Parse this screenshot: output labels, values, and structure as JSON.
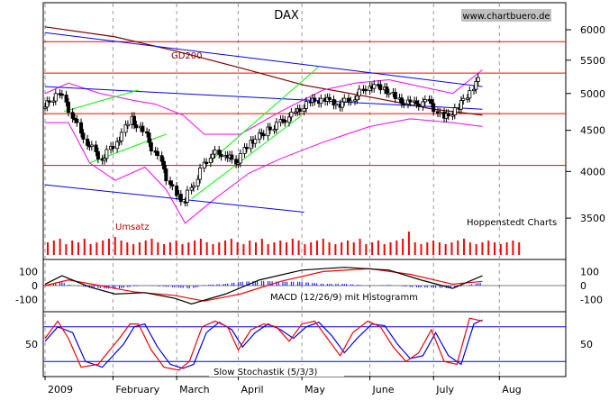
{
  "chart_data": {
    "type": "candlestick",
    "title": "DAX",
    "source_badge": "www.chartbuero.de",
    "credit": "Hoppenstedt Charts",
    "scale": "log",
    "price_ticks": [
      6000,
      5500,
      5000,
      4500,
      4000,
      3500
    ],
    "x_tick_labels": [
      "2009",
      "February",
      "March",
      "April",
      "May",
      "June",
      "July",
      "Aug"
    ],
    "x_dates": [
      "2008-12-30",
      "2009-01-31",
      "2009-03-02",
      "2009-03-31",
      "2009-04-30",
      "2009-06-01",
      "2009-07-01",
      "2009-08-01"
    ],
    "date_range": [
      "2008-12-30",
      "2009-08-31"
    ],
    "last_date": "2009-07-24",
    "prices": [
      {
        "date": "2008-12-30",
        "close": 4810
      },
      {
        "date": "2009-01-06",
        "close": 5020
      },
      {
        "date": "2009-01-12",
        "close": 4700
      },
      {
        "date": "2009-01-19",
        "close": 4350
      },
      {
        "date": "2009-01-26",
        "close": 4150
      },
      {
        "date": "2009-02-02",
        "close": 4350
      },
      {
        "date": "2009-02-09",
        "close": 4650
      },
      {
        "date": "2009-02-16",
        "close": 4420
      },
      {
        "date": "2009-02-23",
        "close": 4080
      },
      {
        "date": "2009-03-02",
        "close": 3720
      },
      {
        "date": "2009-03-06",
        "close": 3680
      },
      {
        "date": "2009-03-12",
        "close": 3950
      },
      {
        "date": "2009-03-18",
        "close": 4200
      },
      {
        "date": "2009-03-25",
        "close": 4220
      },
      {
        "date": "2009-03-30",
        "close": 4090
      },
      {
        "date": "2009-04-06",
        "close": 4350
      },
      {
        "date": "2009-04-14",
        "close": 4500
      },
      {
        "date": "2009-04-20",
        "close": 4600
      },
      {
        "date": "2009-04-27",
        "close": 4720
      },
      {
        "date": "2009-05-04",
        "close": 4880
      },
      {
        "date": "2009-05-11",
        "close": 4920
      },
      {
        "date": "2009-05-18",
        "close": 4850
      },
      {
        "date": "2009-05-25",
        "close": 4950
      },
      {
        "date": "2009-06-01",
        "close": 5120
      },
      {
        "date": "2009-06-08",
        "close": 5080
      },
      {
        "date": "2009-06-15",
        "close": 4900
      },
      {
        "date": "2009-06-22",
        "close": 4850
      },
      {
        "date": "2009-06-29",
        "close": 4880
      },
      {
        "date": "2009-07-06",
        "close": 4650
      },
      {
        "date": "2009-07-13",
        "close": 4800
      },
      {
        "date": "2009-07-20",
        "close": 5100
      },
      {
        "date": "2009-07-24",
        "close": 5250
      }
    ],
    "horizontal_levels": [
      5800,
      5300,
      4720,
      4070
    ],
    "trendlines": [
      {
        "color": "blue",
        "points": [
          [
            "2008-12-30",
            5950
          ],
          [
            "2009-07-24",
            5100
          ]
        ]
      },
      {
        "color": "blue",
        "points": [
          [
            "2008-12-30",
            5100
          ],
          [
            "2009-07-24",
            4780
          ]
        ]
      },
      {
        "color": "blue",
        "points": [
          [
            "2008-12-30",
            3850
          ],
          [
            "2009-05-01",
            3560
          ]
        ]
      },
      {
        "color": "green",
        "points": [
          [
            "2009-01-08",
            4750
          ],
          [
            "2009-02-12",
            5050
          ]
        ]
      },
      {
        "color": "green",
        "points": [
          [
            "2009-01-20",
            4100
          ],
          [
            "2009-02-25",
            4450
          ]
        ]
      },
      {
        "color": "green",
        "points": [
          [
            "2009-03-17",
            4100
          ],
          [
            "2009-05-08",
            5400
          ]
        ]
      },
      {
        "color": "green",
        "points": [
          [
            "2009-03-09",
            3700
          ],
          [
            "2009-04-30",
            4700
          ]
        ]
      }
    ],
    "gd200": {
      "label": "GD200",
      "points": [
        [
          "2008-12-30",
          6050
        ],
        [
          "2009-02-01",
          5880
        ],
        [
          "2009-03-01",
          5650
        ],
        [
          "2009-04-01",
          5380
        ],
        [
          "2009-05-01",
          5120
        ],
        [
          "2009-06-01",
          4950
        ],
        [
          "2009-07-01",
          4780
        ],
        [
          "2009-07-24",
          4700
        ]
      ]
    },
    "bollinger_upper": [
      [
        "2008-12-30",
        5000
      ],
      [
        "2009-01-10",
        5150
      ],
      [
        "2009-01-25",
        5000
      ],
      [
        "2009-02-10",
        4900
      ],
      [
        "2009-02-20",
        4850
      ],
      [
        "2009-03-05",
        4700
      ],
      [
        "2009-03-15",
        4450
      ],
      [
        "2009-04-01",
        4450
      ],
      [
        "2009-04-20",
        4750
      ],
      [
        "2009-05-10",
        5050
      ],
      [
        "2009-05-25",
        5150
      ],
      [
        "2009-06-10",
        5200
      ],
      [
        "2009-06-25",
        5100
      ],
      [
        "2009-07-10",
        5000
      ],
      [
        "2009-07-24",
        5350
      ]
    ],
    "bollinger_lower": [
      [
        "2008-12-30",
        4600
      ],
      [
        "2009-01-10",
        4600
      ],
      [
        "2009-01-20",
        4100
      ],
      [
        "2009-02-01",
        3900
      ],
      [
        "2009-02-15",
        4050
      ],
      [
        "2009-02-25",
        3800
      ],
      [
        "2009-03-06",
        3450
      ],
      [
        "2009-03-20",
        3700
      ],
      [
        "2009-04-05",
        3980
      ],
      [
        "2009-04-20",
        4150
      ],
      [
        "2009-05-10",
        4350
      ],
      [
        "2009-06-01",
        4550
      ],
      [
        "2009-06-20",
        4650
      ],
      [
        "2009-07-10",
        4600
      ],
      [
        "2009-07-24",
        4550
      ]
    ],
    "volume": {
      "label": "Umsatz",
      "relative": [
        0.7,
        0.8,
        0.9,
        0.6,
        0.8,
        0.7,
        0.9,
        0.6,
        0.7,
        0.8,
        0.9,
        1.0,
        0.8,
        0.7,
        0.6,
        0.7,
        0.8,
        0.9,
        0.7,
        0.6,
        0.7,
        0.8,
        0.6,
        0.7,
        0.8,
        0.9,
        0.7,
        0.6,
        0.7,
        0.8,
        0.9,
        0.7,
        0.6,
        0.8,
        0.7,
        0.9,
        0.6,
        0.7,
        0.8,
        0.7,
        0.9,
        0.8,
        0.6,
        0.7,
        0.8,
        0.9,
        0.7,
        0.6,
        0.7,
        0.8,
        0.7,
        0.9,
        0.6,
        0.7,
        0.8,
        0.6,
        0.7,
        0.8,
        0.9,
        1.3,
        0.7,
        0.6,
        0.7,
        0.8,
        0.7,
        0.6,
        0.7,
        0.8,
        0.9,
        0.7,
        0.6,
        0.7,
        0.8,
        0.7,
        0.6,
        0.7,
        0.8,
        0.7
      ]
    },
    "macd": {
      "label": "MACD (12/26/9) mit Histogramm",
      "ticks": [
        100,
        0,
        -100
      ],
      "macd": [
        [
          "2008-12-30",
          10
        ],
        [
          "2009-01-07",
          70
        ],
        [
          "2009-01-20",
          -10
        ],
        [
          "2009-02-01",
          -60
        ],
        [
          "2009-02-15",
          -50
        ],
        [
          "2009-03-01",
          -90
        ],
        [
          "2009-03-09",
          -130
        ],
        [
          "2009-03-25",
          -60
        ],
        [
          "2009-04-10",
          40
        ],
        [
          "2009-04-30",
          110
        ],
        [
          "2009-05-20",
          130
        ],
        [
          "2009-06-10",
          110
        ],
        [
          "2009-06-25",
          40
        ],
        [
          "2009-07-10",
          -20
        ],
        [
          "2009-07-24",
          70
        ]
      ],
      "signal": [
        [
          "2008-12-30",
          0
        ],
        [
          "2009-01-10",
          40
        ],
        [
          "2009-01-25",
          0
        ],
        [
          "2009-02-10",
          -45
        ],
        [
          "2009-03-01",
          -70
        ],
        [
          "2009-03-15",
          -110
        ],
        [
          "2009-04-01",
          -60
        ],
        [
          "2009-04-20",
          30
        ],
        [
          "2009-05-10",
          100
        ],
        [
          "2009-06-01",
          120
        ],
        [
          "2009-06-20",
          80
        ],
        [
          "2009-07-10",
          10
        ],
        [
          "2009-07-24",
          30
        ]
      ]
    },
    "stochastic": {
      "label": "Slow Stochastik (5/3/3)",
      "ticks": [
        50
      ],
      "levels": [
        80,
        20
      ],
      "k": [
        [
          "2008-12-30",
          60
        ],
        [
          "2009-01-05",
          90
        ],
        [
          "2009-01-10",
          60
        ],
        [
          "2009-01-16",
          10
        ],
        [
          "2009-01-24",
          15
        ],
        [
          "2009-02-03",
          60
        ],
        [
          "2009-02-08",
          85
        ],
        [
          "2009-02-12",
          85
        ],
        [
          "2009-02-18",
          40
        ],
        [
          "2009-02-24",
          10
        ],
        [
          "2009-03-03",
          5
        ],
        [
          "2009-03-08",
          20
        ],
        [
          "2009-03-14",
          80
        ],
        [
          "2009-03-20",
          90
        ],
        [
          "2009-03-26",
          80
        ],
        [
          "2009-03-31",
          40
        ],
        [
          "2009-04-06",
          75
        ],
        [
          "2009-04-12",
          85
        ],
        [
          "2009-04-18",
          80
        ],
        [
          "2009-04-24",
          55
        ],
        [
          "2009-04-30",
          85
        ],
        [
          "2009-05-06",
          90
        ],
        [
          "2009-05-12",
          60
        ],
        [
          "2009-05-18",
          30
        ],
        [
          "2009-05-24",
          70
        ],
        [
          "2009-05-31",
          90
        ],
        [
          "2009-06-06",
          80
        ],
        [
          "2009-06-12",
          45
        ],
        [
          "2009-06-18",
          20
        ],
        [
          "2009-06-24",
          35
        ],
        [
          "2009-06-30",
          75
        ],
        [
          "2009-07-06",
          20
        ],
        [
          "2009-07-12",
          15
        ],
        [
          "2009-07-18",
          95
        ],
        [
          "2009-07-24",
          90
        ]
      ],
      "d": [
        [
          "2008-12-30",
          55
        ],
        [
          "2009-01-05",
          80
        ],
        [
          "2009-01-12",
          70
        ],
        [
          "2009-01-18",
          20
        ],
        [
          "2009-01-26",
          10
        ],
        [
          "2009-02-05",
          50
        ],
        [
          "2009-02-10",
          80
        ],
        [
          "2009-02-15",
          85
        ],
        [
          "2009-02-21",
          45
        ],
        [
          "2009-02-27",
          15
        ],
        [
          "2009-03-05",
          8
        ],
        [
          "2009-03-10",
          15
        ],
        [
          "2009-03-16",
          70
        ],
        [
          "2009-03-22",
          88
        ],
        [
          "2009-03-28",
          75
        ],
        [
          "2009-04-02",
          45
        ],
        [
          "2009-04-08",
          70
        ],
        [
          "2009-04-14",
          85
        ],
        [
          "2009-04-20",
          75
        ],
        [
          "2009-04-26",
          60
        ],
        [
          "2009-05-02",
          80
        ],
        [
          "2009-05-08",
          88
        ],
        [
          "2009-05-14",
          65
        ],
        [
          "2009-05-20",
          35
        ],
        [
          "2009-05-26",
          60
        ],
        [
          "2009-06-02",
          85
        ],
        [
          "2009-06-08",
          82
        ],
        [
          "2009-06-14",
          50
        ],
        [
          "2009-06-20",
          25
        ],
        [
          "2009-06-26",
          30
        ],
        [
          "2009-07-02",
          70
        ],
        [
          "2009-07-08",
          30
        ],
        [
          "2009-07-14",
          15
        ],
        [
          "2009-07-20",
          85
        ],
        [
          "2009-07-24",
          92
        ]
      ]
    },
    "colors": {
      "price": "#000000",
      "level": "#ff0000",
      "trend": "#0000ff",
      "channel": "#00ff00",
      "gd200": "#800000",
      "bollinger": "#ff00ff",
      "volume": "#ff0000",
      "macd": "#000000",
      "signal": "#ff0000",
      "hist": "#0000ff",
      "stoch_k": "#ff0000",
      "stoch_d": "#0000ff"
    }
  }
}
